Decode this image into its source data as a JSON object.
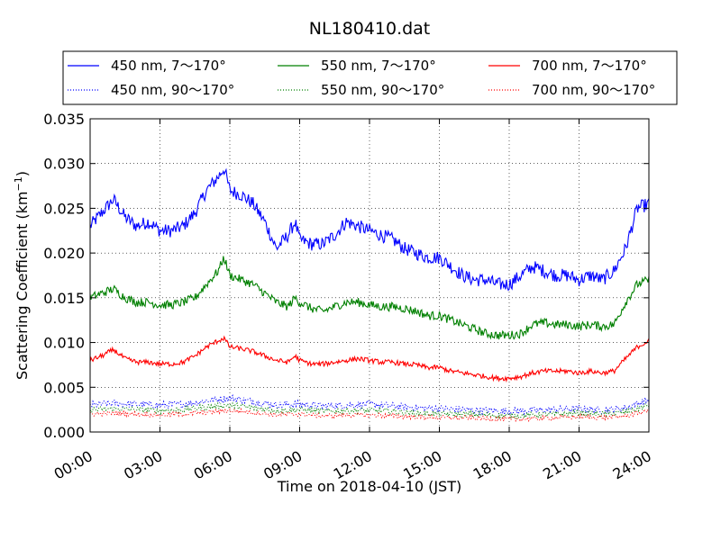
{
  "chart_data": {
    "type": "line",
    "title": "NL180410.dat",
    "xlabel": "Time on 2018-04-10 (JST)",
    "ylabel_main": "Scattering Coefficient (km",
    "ylabel_sup": "−1",
    "ylabel_close": ")",
    "xlim": [
      0,
      24
    ],
    "ylim": [
      0,
      0.035
    ],
    "x_ticks": [
      0,
      3,
      6,
      9,
      12,
      15,
      18,
      21,
      24
    ],
    "x_tick_labels": [
      "00:00",
      "03:00",
      "06:00",
      "09:00",
      "12:00",
      "15:00",
      "18:00",
      "21:00",
      "24:00"
    ],
    "y_ticks": [
      0,
      0.005,
      0.01,
      0.015,
      0.02,
      0.025,
      0.03,
      0.035
    ],
    "y_tick_labels": [
      "0.000",
      "0.005",
      "0.010",
      "0.015",
      "0.020",
      "0.025",
      "0.030",
      "0.035"
    ],
    "grid": true,
    "legend_position": "top",
    "series": [
      {
        "name": "450 nm, 7～170°",
        "color": "#0000ff",
        "style": "solid",
        "x": [
          0,
          0.5,
          1.0,
          1.5,
          2.0,
          2.5,
          3.0,
          3.5,
          4.0,
          4.5,
          5.0,
          5.5,
          5.75,
          6.0,
          6.5,
          7.0,
          7.5,
          8.0,
          8.5,
          8.8,
          9.0,
          9.5,
          10.0,
          10.5,
          11.0,
          11.5,
          12.0,
          12.5,
          13.0,
          13.5,
          14.0,
          14.5,
          15.0,
          15.5,
          16.0,
          16.5,
          17.0,
          17.5,
          18.0,
          18.5,
          19.0,
          19.5,
          20.0,
          20.5,
          21.0,
          21.5,
          22.0,
          22.5,
          23.0,
          23.5,
          24.0
        ],
        "y": [
          0.023,
          0.0245,
          0.026,
          0.024,
          0.023,
          0.0235,
          0.0225,
          0.0225,
          0.023,
          0.0245,
          0.027,
          0.0285,
          0.0295,
          0.027,
          0.0265,
          0.0255,
          0.0235,
          0.0205,
          0.022,
          0.0235,
          0.0215,
          0.021,
          0.021,
          0.022,
          0.0235,
          0.023,
          0.0225,
          0.022,
          0.0215,
          0.0205,
          0.02,
          0.0195,
          0.0195,
          0.0185,
          0.0175,
          0.017,
          0.017,
          0.0165,
          0.0165,
          0.0175,
          0.0185,
          0.018,
          0.0175,
          0.0175,
          0.017,
          0.0175,
          0.017,
          0.018,
          0.0205,
          0.025,
          0.0255
        ]
      },
      {
        "name": "450 nm, 90～170°",
        "color": "#0000ff",
        "style": "dotted",
        "x": [
          0,
          1,
          2,
          3,
          4,
          5,
          6,
          7,
          8,
          9,
          10,
          11,
          12,
          13,
          14,
          15,
          16,
          17,
          18,
          19,
          20,
          21,
          22,
          23,
          24
        ],
        "y": [
          0.003,
          0.0032,
          0.0031,
          0.003,
          0.0031,
          0.0035,
          0.0038,
          0.0034,
          0.003,
          0.0031,
          0.0029,
          0.003,
          0.0031,
          0.0029,
          0.0027,
          0.0026,
          0.0025,
          0.0024,
          0.0023,
          0.0024,
          0.0025,
          0.0026,
          0.0024,
          0.0027,
          0.0036
        ]
      },
      {
        "name": "550 nm, 7～170°",
        "color": "#008000",
        "style": "solid",
        "x": [
          0,
          0.5,
          1.0,
          1.5,
          2.0,
          2.5,
          3.0,
          3.5,
          4.0,
          4.5,
          5.0,
          5.5,
          5.75,
          6.0,
          6.5,
          7.0,
          7.5,
          8.0,
          8.5,
          8.8,
          9.0,
          9.5,
          10.0,
          10.5,
          11.0,
          11.5,
          12.0,
          12.5,
          13.0,
          13.5,
          14.0,
          14.5,
          15.0,
          15.5,
          16.0,
          16.5,
          17.0,
          17.5,
          18.0,
          18.5,
          19.0,
          19.5,
          20.0,
          20.5,
          21.0,
          21.5,
          22.0,
          22.5,
          23.0,
          23.5,
          24.0
        ],
        "y": [
          0.015,
          0.0155,
          0.016,
          0.015,
          0.0145,
          0.0145,
          0.0142,
          0.0142,
          0.0145,
          0.015,
          0.0165,
          0.018,
          0.0195,
          0.0175,
          0.017,
          0.0165,
          0.0155,
          0.0145,
          0.014,
          0.015,
          0.0145,
          0.0138,
          0.0135,
          0.014,
          0.0145,
          0.0145,
          0.0142,
          0.014,
          0.014,
          0.0138,
          0.0135,
          0.013,
          0.013,
          0.0125,
          0.012,
          0.0115,
          0.011,
          0.0108,
          0.0108,
          0.011,
          0.012,
          0.0122,
          0.012,
          0.012,
          0.0118,
          0.012,
          0.0118,
          0.012,
          0.0145,
          0.0165,
          0.017
        ]
      },
      {
        "name": "550 nm, 90～170°",
        "color": "#008000",
        "style": "dotted",
        "x": [
          0,
          1,
          2,
          3,
          4,
          5,
          6,
          7,
          8,
          9,
          10,
          11,
          12,
          13,
          14,
          15,
          16,
          17,
          18,
          19,
          20,
          21,
          22,
          23,
          24
        ],
        "y": [
          0.0025,
          0.0026,
          0.0025,
          0.0024,
          0.0025,
          0.0028,
          0.003,
          0.0027,
          0.0024,
          0.0025,
          0.0023,
          0.0024,
          0.0024,
          0.0023,
          0.0021,
          0.002,
          0.002,
          0.0019,
          0.0018,
          0.0019,
          0.002,
          0.0021,
          0.002,
          0.0022,
          0.003
        ]
      },
      {
        "name": "700 nm, 7～170°",
        "color": "#ff0000",
        "style": "solid",
        "x": [
          0,
          0.5,
          1.0,
          1.5,
          2.0,
          2.5,
          3.0,
          3.5,
          4.0,
          4.5,
          5.0,
          5.5,
          5.75,
          6.0,
          6.5,
          7.0,
          7.5,
          8.0,
          8.5,
          8.8,
          9.0,
          9.5,
          10.0,
          10.5,
          11.0,
          11.5,
          12.0,
          12.5,
          13.0,
          13.5,
          14.0,
          14.5,
          15.0,
          15.5,
          16.0,
          16.5,
          17.0,
          17.5,
          18.0,
          18.5,
          19.0,
          19.5,
          20.0,
          20.5,
          21.0,
          21.5,
          22.0,
          22.5,
          23.0,
          23.5,
          24.0
        ],
        "y": [
          0.008,
          0.0085,
          0.0092,
          0.0082,
          0.0078,
          0.0078,
          0.0076,
          0.0076,
          0.0078,
          0.0085,
          0.0095,
          0.0102,
          0.0105,
          0.0095,
          0.0093,
          0.009,
          0.0085,
          0.008,
          0.0078,
          0.0085,
          0.008,
          0.0076,
          0.0076,
          0.0078,
          0.008,
          0.0082,
          0.008,
          0.0078,
          0.0078,
          0.0076,
          0.0075,
          0.0072,
          0.0072,
          0.0068,
          0.0066,
          0.0064,
          0.0062,
          0.006,
          0.006,
          0.0062,
          0.0066,
          0.0068,
          0.0068,
          0.0068,
          0.0066,
          0.0068,
          0.0066,
          0.0068,
          0.0082,
          0.0095,
          0.0102
        ]
      },
      {
        "name": "700 nm, 90～170°",
        "color": "#ff0000",
        "style": "dotted",
        "x": [
          0,
          1,
          2,
          3,
          4,
          5,
          6,
          7,
          8,
          9,
          10,
          11,
          12,
          13,
          14,
          15,
          16,
          17,
          18,
          19,
          20,
          21,
          22,
          23,
          24
        ],
        "y": [
          0.002,
          0.0021,
          0.002,
          0.0019,
          0.002,
          0.0022,
          0.0024,
          0.0022,
          0.0019,
          0.002,
          0.0018,
          0.0019,
          0.0019,
          0.0018,
          0.0017,
          0.0016,
          0.0016,
          0.0015,
          0.0014,
          0.0015,
          0.0016,
          0.0017,
          0.0016,
          0.0018,
          0.0024
        ]
      }
    ]
  }
}
